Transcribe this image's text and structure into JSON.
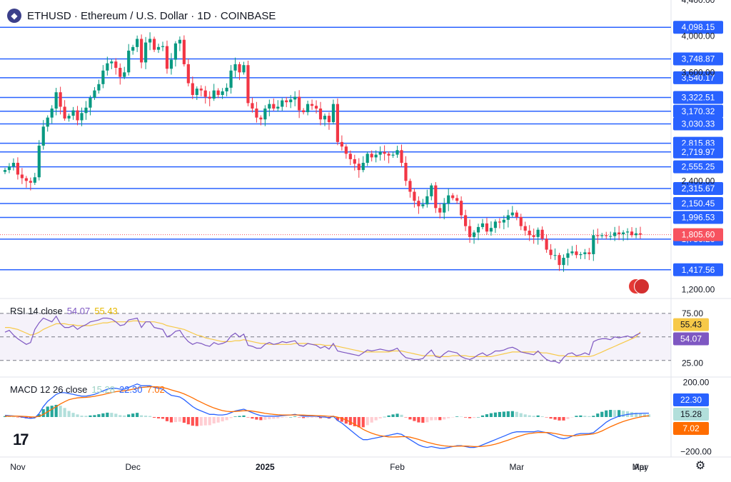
{
  "header": {
    "title": "ETHUSD · Ethereum / U.S. Dollar · 1D · COINBASE"
  },
  "rsi": {
    "title": "RSI 14 close",
    "value1": "54.07",
    "value2": "55.43"
  },
  "macd": {
    "title": "MACD 12 26 close",
    "value1": "15.28",
    "value2": "22.30",
    "value3": "7.02"
  },
  "colors": {
    "up": "#089981",
    "down": "#f23645",
    "level": "#2962ff",
    "rsi": "#7e57c2",
    "rsi_ma": "#f7c948",
    "macd_line": "#2962ff",
    "signal_line": "#ff6d00",
    "price_tag": "#f7525f"
  },
  "chart_data": [
    {
      "type": "candlestick",
      "title": "ETHUSD · Ethereum / U.S. Dollar · 1D · COINBASE",
      "x_labels": [
        "Nov",
        "Dec",
        "2025",
        "Feb",
        "Mar",
        "Apr",
        "May"
      ],
      "y_ticks": [
        "4,400.00",
        "4,000.00",
        "3,600.00",
        "2,400.00",
        "1,200.00"
      ],
      "ylim": [
        1100,
        4400
      ],
      "current_price": "1,805.60",
      "levels": [
        "4,098.15",
        "3,748.87",
        "3,540.17",
        "3,322.51",
        "3,170.32",
        "3,030.33",
        "2,815.83",
        "2,719.97",
        "2,555.25",
        "2,315.67",
        "2,150.45",
        "1,996.53",
        "1,756.26",
        "1,417.56"
      ],
      "level_values": [
        4098.15,
        3748.87,
        3540.17,
        3322.51,
        3170.32,
        3030.33,
        2815.83,
        2719.97,
        2555.25,
        2315.67,
        2150.45,
        1996.53,
        1756.26,
        1417.56
      ],
      "closes": [
        2520,
        2560,
        2600,
        2470,
        2430,
        2400,
        2380,
        2440,
        2790,
        3000,
        3100,
        3200,
        3380,
        3220,
        3090,
        3120,
        3180,
        3070,
        3150,
        3210,
        3320,
        3400,
        3470,
        3620,
        3700,
        3720,
        3650,
        3550,
        3600,
        3840,
        3880,
        3970,
        3710,
        3930,
        3970,
        3850,
        3880,
        3890,
        3640,
        3740,
        3920,
        3960,
        3690,
        3480,
        3350,
        3420,
        3400,
        3330,
        3310,
        3400,
        3350,
        3390,
        3430,
        3620,
        3690,
        3600,
        3680,
        3260,
        3200,
        3100,
        3080,
        3200,
        3250,
        3200,
        3220,
        3290,
        3270,
        3300,
        3330,
        3180,
        3160,
        3250,
        3230,
        3200,
        3080,
        3120,
        3050,
        3250,
        2830,
        2780,
        2700,
        2640,
        2590,
        2520,
        2600,
        2700,
        2660,
        2690,
        2720,
        2700,
        2680,
        2690,
        2740,
        2600,
        2400,
        2280,
        2180,
        2120,
        2140,
        2230,
        2350,
        2100,
        2050,
        2150,
        2240,
        2210,
        2180,
        2020,
        1900,
        1780,
        1830,
        1890,
        1930,
        1840,
        1880,
        1950,
        1940,
        1970,
        2020,
        2050,
        2000,
        1900,
        1850,
        1800,
        1780,
        1860,
        1760,
        1640,
        1580,
        1580,
        1470,
        1550,
        1600,
        1620,
        1580,
        1590,
        1610,
        1590,
        1800,
        1790,
        1800,
        1790,
        1790,
        1830,
        1810,
        1830,
        1840,
        1800,
        1820,
        1805.6
      ],
      "rsi_values": [
        55,
        57,
        52,
        48,
        45,
        42,
        44,
        58,
        65,
        70,
        68,
        66,
        72,
        64,
        60,
        60,
        62,
        58,
        61,
        63,
        66,
        67,
        68,
        70,
        70,
        69,
        66,
        62,
        63,
        68,
        69,
        70,
        60,
        66,
        66,
        60,
        59,
        58,
        50,
        52,
        56,
        57,
        50,
        45,
        42,
        44,
        43,
        41,
        40,
        44,
        42,
        43,
        45,
        51,
        54,
        50,
        53,
        41,
        40,
        38,
        38,
        42,
        44,
        42,
        43,
        45,
        44,
        45,
        46,
        41,
        40,
        43,
        42,
        41,
        38,
        40,
        37,
        43,
        35,
        34,
        33,
        32,
        31,
        30,
        33,
        36,
        35,
        36,
        37,
        36,
        35,
        36,
        38,
        32,
        28,
        27,
        26,
        26,
        27,
        32,
        36,
        29,
        28,
        32,
        35,
        34,
        33,
        29,
        27,
        26,
        28,
        31,
        33,
        30,
        32,
        35,
        35,
        36,
        38,
        39,
        37,
        34,
        33,
        32,
        31,
        35,
        30,
        26,
        24,
        24,
        22,
        28,
        32,
        33,
        30,
        31,
        33,
        31,
        45,
        47,
        48,
        48,
        47,
        50,
        49,
        50,
        51,
        49,
        52,
        54.07
      ],
      "rsi_ma_values": [
        60,
        60,
        59,
        58,
        56,
        54,
        52,
        53,
        55,
        58,
        60,
        62,
        64,
        64,
        64,
        63,
        63,
        62,
        62,
        62,
        62,
        63,
        64,
        65,
        65,
        66,
        66,
        66,
        66,
        66,
        67,
        67,
        66,
        66,
        66,
        66,
        65,
        64,
        62,
        61,
        60,
        59,
        58,
        56,
        54,
        52,
        51,
        49,
        48,
        47,
        46,
        45,
        45,
        45,
        46,
        46,
        47,
        46,
        45,
        44,
        43,
        43,
        42,
        42,
        42,
        42,
        42,
        42,
        43,
        43,
        43,
        43,
        42,
        42,
        42,
        41,
        41,
        41,
        40,
        39,
        38,
        37,
        36,
        35,
        34,
        34,
        34,
        34,
        34,
        34,
        34,
        35,
        35,
        35,
        34,
        33,
        32,
        31,
        30,
        30,
        30,
        30,
        29,
        29,
        29,
        30,
        30,
        30,
        30,
        29,
        29,
        29,
        29,
        29,
        29,
        30,
        31,
        32,
        33,
        34,
        34,
        34,
        34,
        34,
        34,
        34,
        33,
        33,
        32,
        31,
        30,
        30,
        29,
        29,
        29,
        29,
        29,
        29,
        30,
        32,
        34,
        36,
        38,
        40,
        42,
        44,
        46,
        48,
        50,
        55.43
      ],
      "rsi_range": [
        0,
        100
      ],
      "rsi_ticks": [
        "75.00",
        "25.00"
      ],
      "macd_values": [
        10,
        8,
        6,
        4,
        0,
        -5,
        -8,
        -5,
        20,
        60,
        90,
        110,
        130,
        140,
        140,
        135,
        130,
        125,
        120,
        120,
        125,
        130,
        140,
        150,
        160,
        165,
        165,
        160,
        160,
        170,
        180,
        190,
        180,
        180,
        180,
        170,
        165,
        160,
        140,
        125,
        120,
        115,
        100,
        80,
        60,
        45,
        35,
        25,
        15,
        15,
        12,
        12,
        15,
        25,
        35,
        40,
        45,
        35,
        25,
        15,
        8,
        5,
        5,
        5,
        5,
        8,
        10,
        12,
        15,
        10,
        5,
        5,
        5,
        5,
        0,
        0,
        -5,
        5,
        -20,
        -35,
        -55,
        -75,
        -95,
        -115,
        -130,
        -130,
        -125,
        -120,
        -115,
        -110,
        -105,
        -100,
        -95,
        -100,
        -115,
        -130,
        -145,
        -160,
        -170,
        -175,
        -170,
        -175,
        -180,
        -180,
        -175,
        -170,
        -165,
        -165,
        -170,
        -175,
        -175,
        -170,
        -160,
        -150,
        -140,
        -130,
        -120,
        -110,
        -100,
        -90,
        -85,
        -85,
        -85,
        -85,
        -85,
        -80,
        -85,
        -90,
        -100,
        -110,
        -120,
        -125,
        -120,
        -110,
        -100,
        -95,
        -95,
        -95,
        -90,
        -70,
        -50,
        -30,
        -15,
        -5,
        5,
        10,
        15,
        18,
        20,
        21,
        22,
        22.3
      ],
      "signal_values": [
        5,
        5,
        5,
        5,
        4,
        3,
        1,
        0,
        4,
        15,
        30,
        45,
        60,
        75,
        88,
        100,
        106,
        110,
        112,
        113,
        116,
        119,
        124,
        129,
        135,
        141,
        146,
        149,
        151,
        155,
        160,
        166,
        170,
        172,
        174,
        174,
        173,
        170,
        164,
        156,
        149,
        142,
        133,
        122,
        110,
        97,
        85,
        73,
        62,
        52,
        44,
        37,
        33,
        31,
        32,
        34,
        36,
        36,
        34,
        30,
        26,
        21,
        18,
        15,
        13,
        12,
        12,
        12,
        12,
        12,
        11,
        10,
        9,
        8,
        7,
        6,
        4,
        4,
        -1,
        -8,
        -17,
        -29,
        -42,
        -56,
        -71,
        -83,
        -93,
        -101,
        -107,
        -111,
        -114,
        -115,
        -114,
        -113,
        -113,
        -116,
        -122,
        -129,
        -137,
        -145,
        -151,
        -157,
        -162,
        -166,
        -168,
        -169,
        -168,
        -167,
        -167,
        -168,
        -170,
        -170,
        -169,
        -166,
        -162,
        -156,
        -149,
        -141,
        -133,
        -124,
        -115,
        -107,
        -100,
        -95,
        -92,
        -89,
        -89,
        -89,
        -91,
        -95,
        -100,
        -105,
        -108,
        -108,
        -107,
        -104,
        -102,
        -100,
        -97,
        -90,
        -80,
        -68,
        -56,
        -45,
        -35,
        -26,
        -18,
        -11,
        -5,
        0,
        5,
        7.02
      ],
      "macd_range": [
        -230,
        230
      ],
      "macd_ticks": [
        "200.00",
        "−200.00"
      ],
      "macd_tag_values": [
        "22.30",
        "15.28",
        "7.02"
      ]
    }
  ]
}
